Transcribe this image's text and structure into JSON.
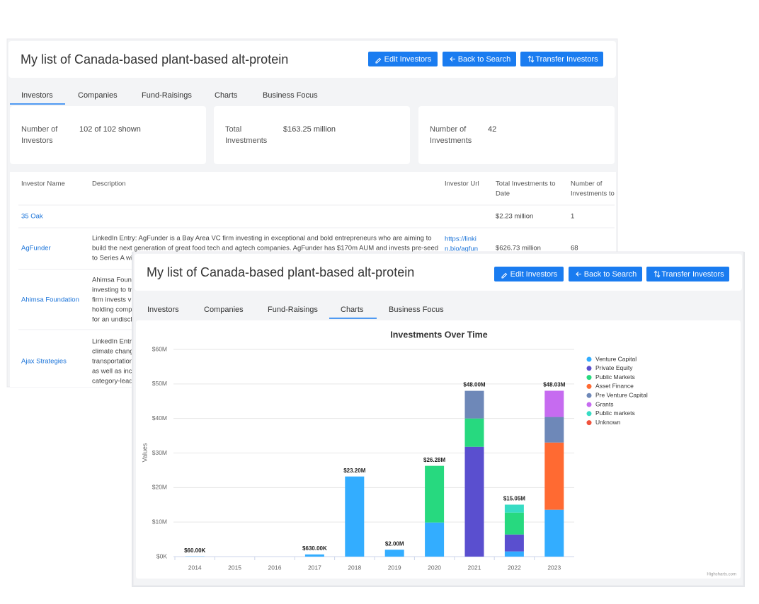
{
  "back": {
    "title": "My list of Canada-based plant-based alt-protein",
    "buttons": [
      "Edit Investors",
      "Back to Search",
      "Transfer Investors"
    ],
    "tabs": [
      "Investors",
      "Companies",
      "Fund-Raisings",
      "Charts",
      "Business Focus"
    ],
    "stats": [
      {
        "label": [
          "Number of",
          "Investors"
        ],
        "value": "102 of 102 shown"
      },
      {
        "label": [
          "Total",
          "Investments"
        ],
        "value": "$163.25 million"
      },
      {
        "label": [
          "Number of",
          "Investments"
        ],
        "value": "42"
      }
    ],
    "table": {
      "columns": [
        [
          "Investor Name"
        ],
        [
          "Description"
        ],
        [
          "Investor Url"
        ],
        [
          "Total Investments to",
          "Date"
        ],
        [
          "Number of",
          "Investments to"
        ]
      ],
      "rows": [
        {
          "name": "35 Oak",
          "total": "$2.23 million",
          "count": "1"
        },
        {
          "name": "AgFunder",
          "description": [
            "LinkedIn Entry: AgFunder is a Bay Area VC firm investing in exceptional and bold entrepreneurs who are aiming to",
            "build the next generation of great food tech and agtech companies. AgFunder has $170m AUM and invests pre-seed",
            "to Series A wit"
          ],
          "url": [
            "https://linki",
            "n.bio/agfun"
          ],
          "total": "$626.73 million",
          "count": "68"
        },
        {
          "name": "Ahimsa Foundation",
          "description": [
            "Ahimsa Found",
            "investing to tr",
            "firm invests vi",
            "holding comp",
            "for an undiscl"
          ]
        },
        {
          "name": "Ajax Strategies",
          "description": [
            "LinkedIn Entry",
            "climate chang",
            "transportation",
            "as well as inclu",
            "category-lead"
          ]
        }
      ]
    }
  },
  "front": {
    "title": "My list of Canada-based plant-based alt-protein",
    "buttons": [
      "Edit Investors",
      "Back to Search",
      "Transfer Investors"
    ],
    "tabs": [
      "Investors",
      "Companies",
      "Fund-Raisings",
      "Charts",
      "Business Focus"
    ]
  },
  "chart_data": {
    "type": "stacked_bar",
    "title": "Investments Over Time",
    "y_label": "Values",
    "credits": "Highcharts.com",
    "categories": [
      "2014",
      "2015",
      "2016",
      "2017",
      "2018",
      "2019",
      "2020",
      "2021",
      "2022",
      "2023"
    ],
    "series": [
      {
        "name": "Venture Capital",
        "color": "#33adff",
        "values": [
          0.06,
          null,
          null,
          0.63,
          23.2,
          2.0,
          9.88,
          null,
          1.5,
          13.58
        ]
      },
      {
        "name": "Private Equity",
        "color": "#5a4fcf",
        "values": [
          null,
          null,
          null,
          null,
          null,
          null,
          null,
          31.8,
          4.9,
          null
        ]
      },
      {
        "name": "Public Markets",
        "color": "#27d97f",
        "values": [
          null,
          null,
          null,
          null,
          null,
          null,
          16.4,
          8.2,
          6.35,
          null
        ]
      },
      {
        "name": "Asset Finance",
        "color": "#ff6a32",
        "values": [
          null,
          null,
          null,
          null,
          null,
          null,
          null,
          null,
          null,
          19.45
        ]
      },
      {
        "name": "Pre Venture Capital",
        "color": "#6e88b8",
        "values": [
          null,
          null,
          null,
          null,
          null,
          null,
          null,
          8.0,
          null,
          7.4
        ]
      },
      {
        "name": "Grants",
        "color": "#c66bf0",
        "values": [
          null,
          null,
          null,
          null,
          null,
          null,
          null,
          null,
          null,
          7.6
        ]
      },
      {
        "name": "Public markets",
        "color": "#37dcc4",
        "values": [
          null,
          null,
          null,
          null,
          null,
          null,
          null,
          null,
          2.3,
          null
        ]
      },
      {
        "name": "Unknown",
        "color": "#f0523c",
        "values": [
          null,
          null,
          null,
          null,
          null,
          null,
          null,
          null,
          null,
          null
        ]
      }
    ],
    "totals": [
      0.06,
      null,
      null,
      0.63,
      23.2,
      2.0,
      26.28,
      48.0,
      15.05,
      48.03
    ],
    "total_labels": [
      "$60.00K",
      null,
      null,
      "$630.00K",
      "$23.20M",
      "$2.00M",
      "$26.28M",
      "$48.00M",
      "$15.05M",
      "$48.03M"
    ],
    "ylim": [
      0,
      60
    ],
    "yticks": [
      {
        "value": 0,
        "label": "$0K"
      },
      {
        "value": 10,
        "label": "$10M"
      },
      {
        "value": 20,
        "label": "$20M"
      },
      {
        "value": 30,
        "label": "$30M"
      },
      {
        "value": 40,
        "label": "$40M"
      },
      {
        "value": 50,
        "label": "$50M"
      },
      {
        "value": 60,
        "label": "$60M"
      }
    ],
    "grid": true,
    "legend": "right"
  }
}
